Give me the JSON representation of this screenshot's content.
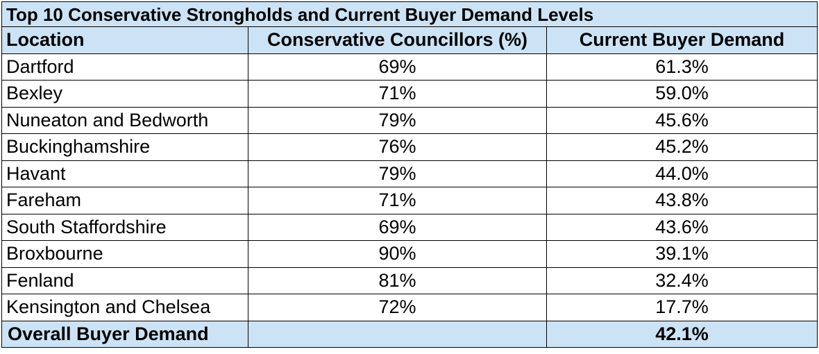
{
  "colors": {
    "header_fill": "#cce3f5",
    "body_fill": "#ffffff",
    "border": "#000000"
  },
  "table": {
    "title": "Top 10 Conservative Strongholds and Current Buyer Demand Levels",
    "columns": [
      "Location",
      "Conservative Councillors (%)",
      "Current Buyer Demand"
    ],
    "rows": [
      {
        "location": "Dartford",
        "councillors": "69%",
        "demand": "61.3%"
      },
      {
        "location": "Bexley",
        "councillors": "71%",
        "demand": "59.0%"
      },
      {
        "location": "Nuneaton and Bedworth",
        "councillors": "79%",
        "demand": "45.6%"
      },
      {
        "location": "Buckinghamshire",
        "councillors": "76%",
        "demand": "45.2%"
      },
      {
        "location": "Havant",
        "councillors": "79%",
        "demand": "44.0%"
      },
      {
        "location": "Fareham",
        "councillors": "71%",
        "demand": "43.8%"
      },
      {
        "location": "South Staffordshire",
        "councillors": "69%",
        "demand": "43.6%"
      },
      {
        "location": "Broxbourne",
        "councillors": "90%",
        "demand": "39.1%"
      },
      {
        "location": "Fenland",
        "councillors": "81%",
        "demand": "32.4%"
      },
      {
        "location": "Kensington and Chelsea",
        "councillors": "72%",
        "demand": "17.7%"
      }
    ],
    "total": {
      "label": "Overall Buyer Demand",
      "councillors": "",
      "demand": "42.1%"
    }
  }
}
